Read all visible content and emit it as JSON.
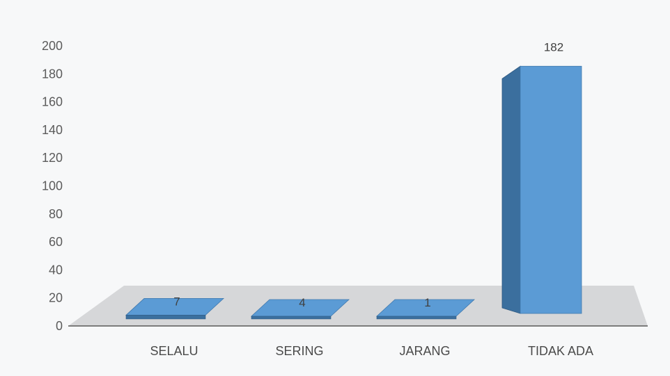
{
  "chart_data": {
    "type": "bar",
    "style": "3d-column",
    "categories": [
      "SELALU",
      "SERING",
      "JARANG",
      "TIDAK ADA"
    ],
    "values": [
      7,
      4,
      1,
      182
    ],
    "data_labels": [
      "7",
      "4",
      "1",
      "182"
    ],
    "ylim": [
      0,
      200
    ],
    "yticks": [
      "0",
      "20",
      "40",
      "60",
      "80",
      "100",
      "120",
      "140",
      "160",
      "180",
      "200"
    ],
    "title": "",
    "xlabel": "",
    "ylabel": "",
    "grid": false,
    "legend": "none",
    "colors": {
      "bar_front": "#5b9bd5",
      "bar_side": "#3b6f9e",
      "bar_top": "#8ab8e6",
      "floor": "#d6d7d9",
      "axis": "#595959"
    }
  }
}
